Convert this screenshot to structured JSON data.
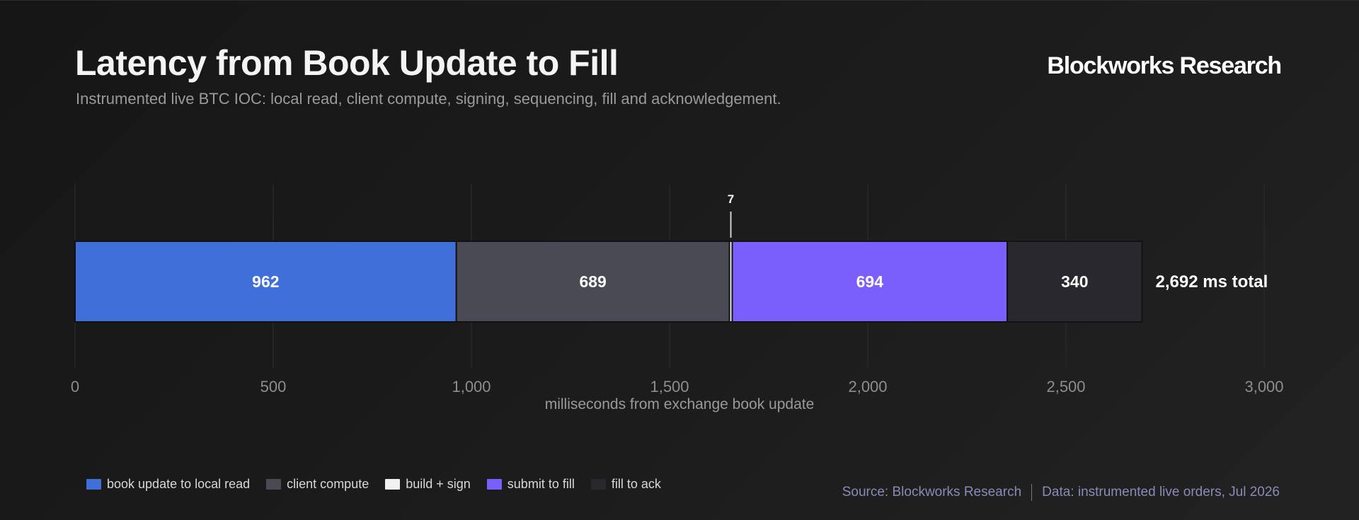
{
  "header": {
    "title": "Latency from Book Update to Fill",
    "subtitle": "Instrumented live BTC IOC: local read, client compute, signing, sequencing, fill and acknowledgement.",
    "brand": "Blockworks Research"
  },
  "footer": {
    "source": "Source: Blockworks Research",
    "data_note": "Data: instrumented live orders, Jul 2026"
  },
  "chart_data": {
    "type": "bar",
    "orientation": "horizontal-stacked",
    "title": "Latency from Book Update to Fill",
    "xlabel": "milliseconds from exchange book update",
    "xlim": [
      0,
      3000
    ],
    "x_ticks": [
      0,
      500,
      1000,
      1500,
      2000,
      2500,
      3000
    ],
    "x_tick_labels": [
      "0",
      "500",
      "1,000",
      "1,500",
      "2,000",
      "2,500",
      "3,000"
    ],
    "grid": true,
    "legend_position": "bottom-left",
    "total_label": "2,692 ms total",
    "series": [
      {
        "name": "book update to local read",
        "value": 962,
        "label": "962",
        "color": "#3f6fd8"
      },
      {
        "name": "client compute",
        "value": 689,
        "label": "689",
        "color": "#4a4a55"
      },
      {
        "name": "build + sign",
        "value": 7,
        "label": "7",
        "color": "#f0f0f0"
      },
      {
        "name": "submit to fill",
        "value": 694,
        "label": "694",
        "color": "#7a5ffc"
      },
      {
        "name": "fill to ack",
        "value": 340,
        "label": "340",
        "color": "#28282e"
      }
    ]
  }
}
